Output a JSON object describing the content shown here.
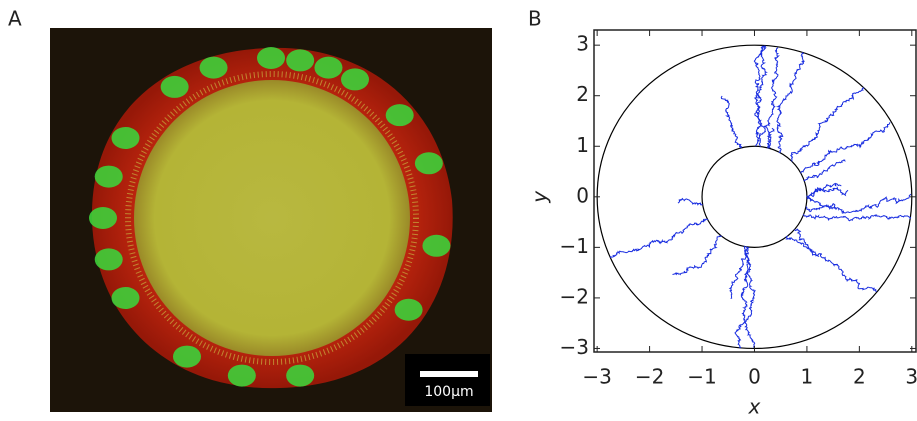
{
  "panels": [
    {
      "label": "A",
      "scale_bar": "100μm"
    },
    {
      "label": "B"
    }
  ],
  "chart_data": {
    "type": "trajectories",
    "xlabel": "x",
    "ylabel": "y",
    "xlim": [
      -3.06,
      3.08
    ],
    "ylim": [
      -3.07,
      3.3
    ],
    "xticks": [
      {
        "value": -3,
        "label": "−3"
      },
      {
        "value": -2,
        "label": "−2"
      },
      {
        "value": -1,
        "label": "−1"
      },
      0,
      1,
      2,
      3
    ],
    "yticks": [
      {
        "value": -3,
        "label": "−3"
      },
      {
        "value": -2,
        "label": "−2"
      },
      {
        "value": -1,
        "label": "−1"
      },
      0,
      1,
      2,
      3
    ]
  }
}
